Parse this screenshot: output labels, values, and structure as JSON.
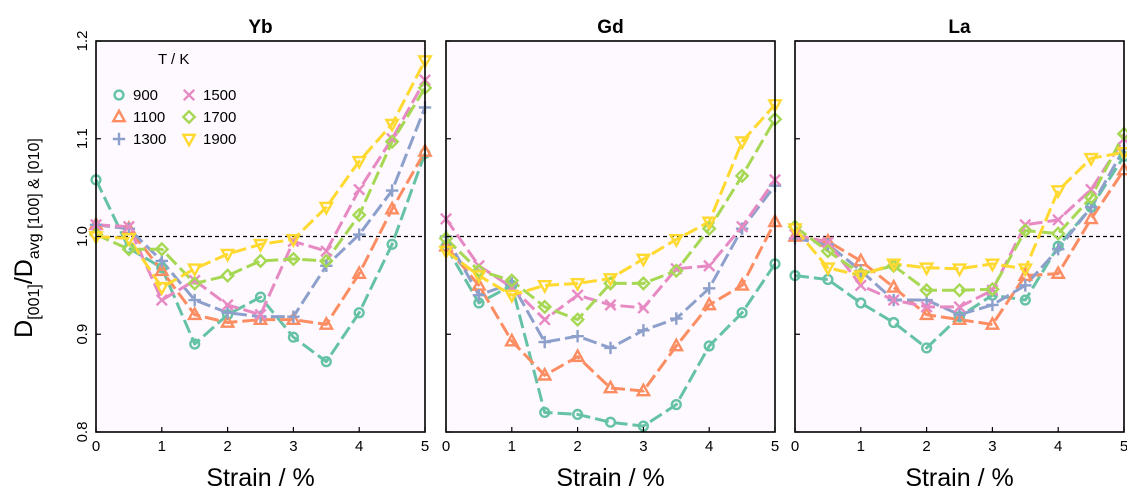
{
  "chart_data": {
    "type": "line",
    "ylabel": {
      "main": "D",
      "num_sub": "[001]",
      "slash": "/",
      "den": "D",
      "den_sub": "avg [100] & [010]"
    },
    "legend": {
      "title": "T / K",
      "placement": "top-left"
    },
    "xlim": [
      0,
      5
    ],
    "ylim": [
      0.8,
      1.2
    ],
    "xticks": [
      "0",
      "1",
      "2",
      "3",
      "4",
      "5"
    ],
    "yticks": [
      "0.8",
      "0.9",
      "1.0",
      "1.1",
      "1.2"
    ],
    "reference_line": 1.0,
    "x": [
      0,
      0.5,
      1,
      1.5,
      2,
      2.5,
      3,
      3.5,
      4,
      4.5,
      5
    ],
    "series_styles": [
      {
        "name": "900",
        "color": "#66c2a5",
        "marker": "circle"
      },
      {
        "name": "1100",
        "color": "#fc8d62",
        "marker": "triangle-up"
      },
      {
        "name": "1300",
        "color": "#8da0cb",
        "marker": "plus"
      },
      {
        "name": "1500",
        "color": "#e78ac3",
        "marker": "cross"
      },
      {
        "name": "1700",
        "color": "#a6d854",
        "marker": "diamond"
      },
      {
        "name": "1900",
        "color": "#ffd92f",
        "marker": "triangle-down"
      }
    ],
    "panels": [
      {
        "title": "Yb",
        "xlabel": "Strain / %",
        "series": [
          {
            "name": "900",
            "values": [
              1.058,
              0.988,
              0.968,
              0.89,
              0.92,
              0.938,
              0.897,
              0.872,
              0.922,
              0.992,
              1.085
            ]
          },
          {
            "name": "1100",
            "values": [
              1.012,
              1.008,
              0.965,
              0.92,
              0.912,
              0.915,
              0.915,
              0.91,
              0.962,
              1.028,
              1.087
            ]
          },
          {
            "name": "1300",
            "values": [
              1.012,
              1.008,
              0.975,
              0.935,
              0.922,
              0.918,
              0.918,
              0.97,
              1.002,
              1.047,
              1.132
            ]
          },
          {
            "name": "1500",
            "values": [
              1.012,
              1.01,
              0.935,
              0.955,
              0.93,
              0.92,
              0.995,
              0.985,
              1.048,
              1.1,
              1.16
            ]
          },
          {
            "name": "1700",
            "values": [
              1.002,
              0.987,
              0.987,
              0.952,
              0.96,
              0.975,
              0.977,
              0.975,
              1.022,
              1.097,
              1.152
            ]
          },
          {
            "name": "1900",
            "values": [
              1.0,
              0.998,
              0.948,
              0.967,
              0.982,
              0.992,
              0.997,
              1.03,
              1.077,
              1.115,
              1.18
            ]
          }
        ]
      },
      {
        "title": "Gd",
        "xlabel": "Strain / %",
        "series": [
          {
            "name": "900",
            "values": [
              0.99,
              0.932,
              0.95,
              0.82,
              0.818,
              0.81,
              0.806,
              0.828,
              0.888,
              0.922,
              0.972
            ]
          },
          {
            "name": "1100",
            "values": [
              0.99,
              0.95,
              0.893,
              0.858,
              0.877,
              0.845,
              0.842,
              0.888,
              0.93,
              0.95,
              1.015
            ]
          },
          {
            "name": "1300",
            "values": [
              1.0,
              0.94,
              0.952,
              0.892,
              0.898,
              0.886,
              0.904,
              0.916,
              0.947,
              1.008,
              1.052
            ]
          },
          {
            "name": "1500",
            "values": [
              1.018,
              0.97,
              0.948,
              0.915,
              0.94,
              0.93,
              0.927,
              0.967,
              0.97,
              1.01,
              1.058
            ]
          },
          {
            "name": "1700",
            "values": [
              0.998,
              0.965,
              0.955,
              0.928,
              0.915,
              0.952,
              0.952,
              0.965,
              1.008,
              1.062,
              1.12
            ]
          },
          {
            "name": "1900",
            "values": [
              0.985,
              0.96,
              0.94,
              0.95,
              0.952,
              0.957,
              0.977,
              0.997,
              1.015,
              1.097,
              1.135
            ]
          }
        ]
      },
      {
        "title": "La",
        "xlabel": "Strain / %",
        "series": [
          {
            "name": "900",
            "values": [
              0.96,
              0.956,
              0.932,
              0.912,
              0.886,
              0.918,
              0.94,
              0.935,
              0.99,
              1.03,
              1.082
            ]
          },
          {
            "name": "1100",
            "values": [
              1.0,
              0.995,
              0.975,
              0.948,
              0.92,
              0.915,
              0.91,
              0.96,
              0.962,
              1.018,
              1.068
            ]
          },
          {
            "name": "1300",
            "values": [
              0.998,
              0.992,
              0.965,
              0.935,
              0.935,
              0.92,
              0.93,
              0.95,
              0.987,
              1.03,
              1.09
            ]
          },
          {
            "name": "1500",
            "values": [
              1.002,
              0.994,
              0.95,
              0.935,
              0.928,
              0.928,
              0.945,
              1.012,
              1.017,
              1.048,
              1.1
            ]
          },
          {
            "name": "1700",
            "values": [
              1.01,
              0.985,
              0.962,
              0.97,
              0.945,
              0.945,
              0.946,
              1.006,
              1.003,
              1.04,
              1.105
            ]
          },
          {
            "name": "1900",
            "values": [
              1.008,
              0.968,
              0.96,
              0.972,
              0.968,
              0.967,
              0.972,
              0.967,
              1.047,
              1.08,
              1.086
            ]
          }
        ]
      }
    ]
  }
}
